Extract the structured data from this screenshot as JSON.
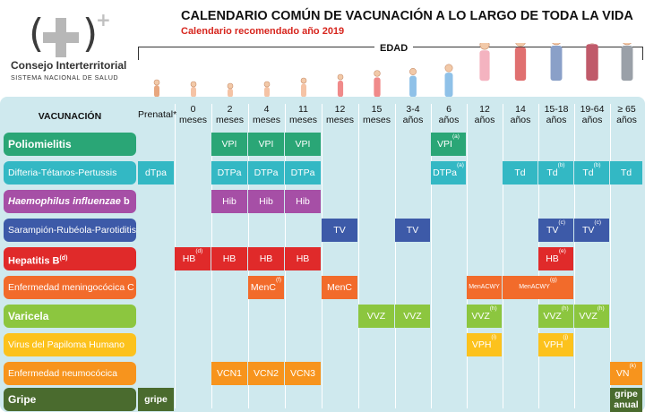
{
  "org": {
    "name": "Consejo Interterritorial",
    "subtitle": "SISTEMA NACIONAL DE SALUD"
  },
  "title": "CALENDARIO COMÚN DE VACUNACIÓN A LO LARGO DE TODA LA VIDA",
  "subtitle": "Calendario recomendado año 2019",
  "age_label": "EDAD",
  "vac_header": "VACUNACIÓN",
  "columns": [
    {
      "l1": "Prenatal*",
      "l2": ""
    },
    {
      "l1": "0",
      "l2": "meses"
    },
    {
      "l1": "2",
      "l2": "meses"
    },
    {
      "l1": "4",
      "l2": "meses"
    },
    {
      "l1": "11",
      "l2": "meses"
    },
    {
      "l1": "12",
      "l2": "meses"
    },
    {
      "l1": "15",
      "l2": "meses"
    },
    {
      "l1": "3-4",
      "l2": "años"
    },
    {
      "l1": "6",
      "l2": "años"
    },
    {
      "l1": "12",
      "l2": "años"
    },
    {
      "l1": "14",
      "l2": "años"
    },
    {
      "l1": "15-18",
      "l2": "años"
    },
    {
      "l1": "19-64",
      "l2": "años"
    },
    {
      "l1": "≥ 65",
      "l2": "años"
    }
  ],
  "rows": [
    {
      "label": "Poliomielitis",
      "label_suffix": "",
      "label_sup": "",
      "color": "#2aa676",
      "italic": false,
      "bold": true,
      "cells": [
        {
          "col": 2,
          "text": "VPI",
          "sup": ""
        },
        {
          "col": 3,
          "text": "VPI",
          "sup": ""
        },
        {
          "col": 4,
          "text": "VPI",
          "sup": ""
        },
        {
          "col": 8,
          "text": "VPI",
          "sup": "(a)"
        }
      ]
    },
    {
      "label": "Difteria-Tétanos-Pertussis",
      "label_suffix": "",
      "label_sup": "",
      "color": "#33b8c4",
      "italic": false,
      "bold": false,
      "cells": [
        {
          "col": 0,
          "text": "dTpa",
          "sup": ""
        },
        {
          "col": 2,
          "text": "DTPa",
          "sup": ""
        },
        {
          "col": 3,
          "text": "DTPa",
          "sup": ""
        },
        {
          "col": 4,
          "text": "DTPa",
          "sup": ""
        },
        {
          "col": 8,
          "text": "DTPa",
          "sup": "(a)"
        },
        {
          "col": 10,
          "text": "Td",
          "sup": ""
        },
        {
          "col": 11,
          "text": "Td",
          "sup": "(b)"
        },
        {
          "col": 12,
          "text": "Td",
          "sup": "(b)"
        },
        {
          "col": 13,
          "text": "Td",
          "sup": ""
        }
      ]
    },
    {
      "label": "Haemophilus influenzae",
      "label_suffix": " b",
      "label_sup": "",
      "color": "#a64fa6",
      "italic": true,
      "bold": true,
      "cells": [
        {
          "col": 2,
          "text": "Hib",
          "sup": ""
        },
        {
          "col": 3,
          "text": "Hib",
          "sup": ""
        },
        {
          "col": 4,
          "text": "Hib",
          "sup": ""
        }
      ]
    },
    {
      "label": "Sarampión-Rubéola-Parotiditis",
      "label_suffix": "",
      "label_sup": "",
      "color": "#3d5aa8",
      "italic": false,
      "bold": false,
      "cells": [
        {
          "col": 5,
          "text": "TV",
          "sup": ""
        },
        {
          "col": 7,
          "text": "TV",
          "sup": ""
        },
        {
          "col": 11,
          "text": "TV",
          "sup": "(c)"
        },
        {
          "col": 12,
          "text": "TV",
          "sup": "(c)"
        }
      ]
    },
    {
      "label": "Hepatitis B",
      "label_suffix": "",
      "label_sup": "(d)",
      "color": "#e02a2a",
      "italic": false,
      "bold": true,
      "cells": [
        {
          "col": 1,
          "text": "HB",
          "sup": "(d)"
        },
        {
          "col": 2,
          "text": "HB",
          "sup": ""
        },
        {
          "col": 3,
          "text": "HB",
          "sup": ""
        },
        {
          "col": 4,
          "text": "HB",
          "sup": ""
        },
        {
          "col": 11,
          "text": "HB",
          "sup": "(e)"
        }
      ]
    },
    {
      "label": "Enfermedad meningocócica C",
      "label_suffix": "",
      "label_sup": "",
      "color": "#f26b2b",
      "italic": false,
      "bold": false,
      "cells": [
        {
          "col": 3,
          "text": "MenC",
          "sup": "(f)"
        },
        {
          "col": 5,
          "text": "MenC",
          "sup": ""
        },
        {
          "col": 9,
          "text": "MenACWY",
          "sup": "",
          "small": true
        },
        {
          "col": 10,
          "span": 2,
          "text": "MenACWY",
          "sup": "(g)",
          "small": true
        }
      ]
    },
    {
      "label": "Varicela",
      "label_suffix": "",
      "label_sup": "",
      "color": "#8cc63f",
      "italic": false,
      "bold": true,
      "cells": [
        {
          "col": 6,
          "text": "VVZ",
          "sup": ""
        },
        {
          "col": 7,
          "text": "VVZ",
          "sup": ""
        },
        {
          "col": 9,
          "text": "VVZ",
          "sup": "(h)"
        },
        {
          "col": 11,
          "text": "VVZ",
          "sup": "(h)"
        },
        {
          "col": 12,
          "text": "VVZ",
          "sup": "(h)"
        }
      ]
    },
    {
      "label": "Virus del Papiloma Humano",
      "label_suffix": "",
      "label_sup": "",
      "color": "#fcc21d",
      "italic": false,
      "bold": false,
      "cells": [
        {
          "col": 9,
          "text": "VPH",
          "sup": "(i)"
        },
        {
          "col": 11,
          "text": "VPH",
          "sup": "(j)"
        }
      ]
    },
    {
      "label": "Enfermedad neumocócica",
      "label_suffix": "",
      "label_sup": "",
      "color": "#f7941d",
      "italic": false,
      "bold": false,
      "cells": [
        {
          "col": 2,
          "text": "VCN1",
          "sup": ""
        },
        {
          "col": 3,
          "text": "VCN2",
          "sup": ""
        },
        {
          "col": 4,
          "text": "VCN3",
          "sup": ""
        },
        {
          "col": 13,
          "text": "VN",
          "sup": "(k)"
        }
      ]
    },
    {
      "label": "Gripe",
      "label_suffix": "",
      "label_sup": "",
      "color": "#4a6b2e",
      "italic": false,
      "bold": true,
      "cells": [
        {
          "col": 0,
          "text": "gripe",
          "sup": ""
        },
        {
          "col": 13,
          "text": "gripe",
          "text2": "anual",
          "sup": ""
        }
      ]
    }
  ]
}
